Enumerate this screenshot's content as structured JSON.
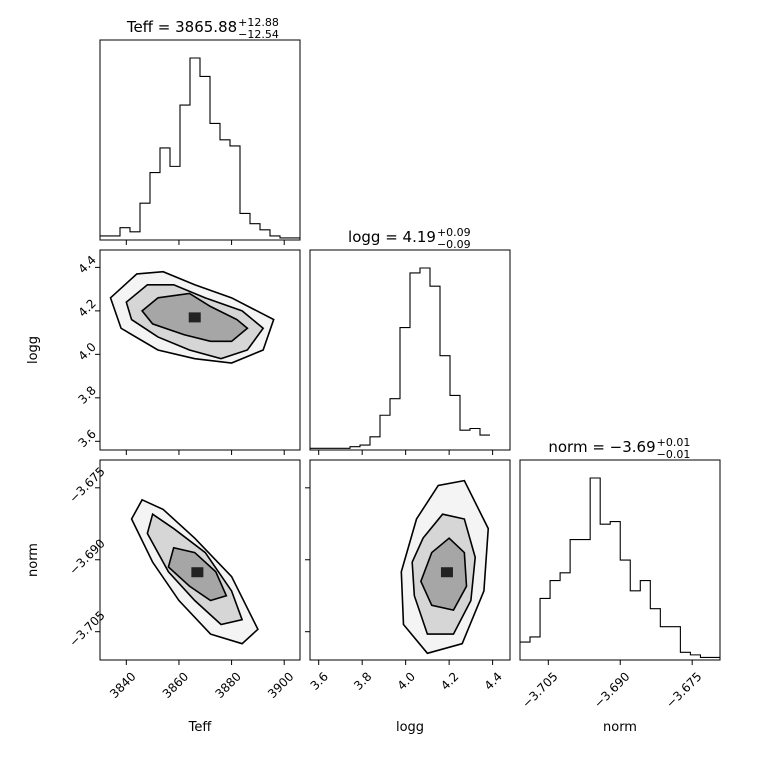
{
  "colors": {
    "ink": "#000000",
    "background": "#ffffff"
  },
  "chart_data": {
    "type": "corner",
    "parameters": [
      {
        "name": "Teff",
        "title_label": "Teff",
        "title_value": "3865.88",
        "title_plus": "+12.88",
        "title_minus": "−12.54",
        "range": [
          3830,
          3906
        ],
        "ticks": [
          3840,
          3860,
          3880,
          3900
        ],
        "tick_labels": [
          "3840",
          "3860",
          "3880",
          "3900"
        ],
        "hist_edges_start": 3830,
        "hist_bin_width": 3.8,
        "hist_counts": [
          2,
          2,
          6,
          4,
          18,
          33,
          45,
          36,
          66,
          89,
          80,
          57,
          49,
          46,
          13,
          8,
          5,
          2,
          1,
          1
        ]
      },
      {
        "name": "logg",
        "title_label": "logg",
        "title_value": "4.19",
        "title_plus": "+0.09",
        "title_minus": "−0.09",
        "range": [
          3.56,
          4.48
        ],
        "ticks": [
          3.6,
          3.8,
          4.0,
          4.2,
          4.4
        ],
        "tick_labels": [
          "3.6",
          "3.8",
          "4.0",
          "4.2",
          "4.4"
        ],
        "hist_edges_start": 3.56,
        "hist_bin_width": 0.046,
        "hist_counts": [
          1,
          1,
          1,
          1,
          2,
          3,
          8,
          21,
          31,
          74,
          107,
          110,
          99,
          57,
          33,
          12,
          13,
          9
        ]
      },
      {
        "name": "norm",
        "title_label": "norm",
        "title_value": "−3.69",
        "title_plus": "+0.01",
        "title_minus": "−0.01",
        "range": [
          -3.7109,
          -3.6692
        ],
        "ticks": [
          -3.705,
          -3.69,
          -3.675
        ],
        "tick_labels": [
          "−3.705",
          "−3.690",
          "−3.675"
        ],
        "hist_edges_start": -3.7109,
        "hist_bin_width": 0.00209,
        "hist_counts": [
          7,
          9,
          24,
          31,
          34,
          47,
          47,
          71,
          53,
          54,
          39,
          27,
          31,
          20,
          13,
          13,
          3,
          2,
          1,
          1
        ]
      }
    ],
    "pairs": [
      {
        "x": "Teff",
        "y": "logg",
        "center": [
          3866,
          4.17
        ],
        "contours": [
          [
            [
              3852,
              4.26
            ],
            [
              3864,
              4.28
            ],
            [
              3872,
              4.22
            ],
            [
              3882,
              4.16
            ],
            [
              3886,
              4.12
            ],
            [
              3880,
              4.06
            ],
            [
              3872,
              4.06
            ],
            [
              3862,
              4.09
            ],
            [
              3850,
              4.14
            ],
            [
              3846,
              4.2
            ]
          ],
          [
            [
              3848,
              4.32
            ],
            [
              3858,
              4.32
            ],
            [
              3870,
              4.26
            ],
            [
              3884,
              4.2
            ],
            [
              3892,
              4.12
            ],
            [
              3886,
              4.02
            ],
            [
              3876,
              3.98
            ],
            [
              3864,
              4.02
            ],
            [
              3852,
              4.08
            ],
            [
              3842,
              4.16
            ],
            [
              3840,
              4.24
            ]
          ],
          [
            [
              3844,
              4.37
            ],
            [
              3854,
              4.38
            ],
            [
              3866,
              4.32
            ],
            [
              3880,
              4.26
            ],
            [
              3896,
              4.16
            ],
            [
              3892,
              4.02
            ],
            [
              3880,
              3.96
            ],
            [
              3866,
              3.98
            ],
            [
              3852,
              4.02
            ],
            [
              3838,
              4.12
            ],
            [
              3834,
              4.26
            ]
          ]
        ]
      },
      {
        "x": "Teff",
        "y": "norm",
        "center": [
          3867,
          -3.6926
        ],
        "contours": [
          [
            [
              3858,
              -3.6875
            ],
            [
              3866,
              -3.6885
            ],
            [
              3874,
              -3.6925
            ],
            [
              3878,
              -3.6975
            ],
            [
              3872,
              -3.6985
            ],
            [
              3864,
              -3.6955
            ],
            [
              3856,
              -3.6915
            ]
          ],
          [
            [
              3850,
              -3.6805
            ],
            [
              3858,
              -3.6835
            ],
            [
              3870,
              -3.6885
            ],
            [
              3880,
              -3.6965
            ],
            [
              3884,
              -3.7025
            ],
            [
              3876,
              -3.7035
            ],
            [
              3866,
              -3.6985
            ],
            [
              3856,
              -3.6925
            ],
            [
              3848,
              -3.6845
            ]
          ],
          [
            [
              3846,
              -3.6775
            ],
            [
              3854,
              -3.6795
            ],
            [
              3866,
              -3.6855
            ],
            [
              3880,
              -3.6935
            ],
            [
              3890,
              -3.7045
            ],
            [
              3884,
              -3.7075
            ],
            [
              3872,
              -3.7055
            ],
            [
              3860,
              -3.6985
            ],
            [
              3850,
              -3.6905
            ],
            [
              3842,
              -3.6815
            ]
          ]
        ]
      },
      {
        "x": "logg",
        "y": "norm",
        "center": [
          4.19,
          -3.6926
        ],
        "contours": [
          [
            [
              4.12,
              -3.6885
            ],
            [
              4.2,
              -3.6855
            ],
            [
              4.27,
              -3.6885
            ],
            [
              4.28,
              -3.6955
            ],
            [
              4.22,
              -3.7005
            ],
            [
              4.12,
              -3.6995
            ],
            [
              4.07,
              -3.6945
            ]
          ],
          [
            [
              4.08,
              -3.6855
            ],
            [
              4.17,
              -3.6805
            ],
            [
              4.27,
              -3.6815
            ],
            [
              4.32,
              -3.6895
            ],
            [
              4.3,
              -3.6985
            ],
            [
              4.22,
              -3.7055
            ],
            [
              4.1,
              -3.7055
            ],
            [
              4.04,
              -3.6975
            ],
            [
              4.03,
              -3.6905
            ]
          ],
          [
            [
              4.05,
              -3.6815
            ],
            [
              4.15,
              -3.6745
            ],
            [
              4.27,
              -3.6735
            ],
            [
              4.38,
              -3.6835
            ],
            [
              4.36,
              -3.6965
            ],
            [
              4.26,
              -3.7075
            ],
            [
              4.1,
              -3.7095
            ],
            [
              3.99,
              -3.7035
            ],
            [
              3.98,
              -3.6925
            ]
          ]
        ]
      }
    ]
  }
}
